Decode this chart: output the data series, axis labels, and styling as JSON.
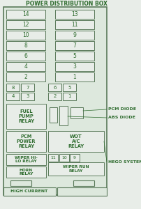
{
  "title": "POWER DISTRIBUTION BOX",
  "bg_outer": "#e8ede8",
  "bg_inner": "#dde8dd",
  "border_color": "#5a7a5a",
  "text_color": "#2d6b2d",
  "box_fc": "#e8ede8",
  "box_ec": "#5a7a5a",
  "main_fuse_rows": [
    [
      "14",
      "13"
    ],
    [
      "12",
      "11"
    ],
    [
      "10",
      "9"
    ],
    [
      "8",
      "7"
    ],
    [
      "6",
      "5"
    ],
    [
      "4",
      "3"
    ],
    [
      "2",
      "1"
    ]
  ],
  "small_fuse_rows": [
    [
      "8",
      "7",
      "6",
      "5"
    ],
    [
      "4",
      "3",
      "2",
      "1"
    ]
  ],
  "relay_fuel_pump": "FUEL\nPUMP\nRELAY",
  "relay_pcm_power": "PCM\nPOWER\nRELAY",
  "relay_wot_ac": "WOT\nA/C\nRELAY",
  "relay_wiper_hilo": "WIPER HI-\nLO RELAY",
  "relay_horn": "HORN\nRELAY",
  "relay_wiper_run": "WIPER RUN\nRELAY",
  "bottom_fuses": [
    "11",
    "10",
    "9"
  ],
  "ann_pcm": "PCM DIODE",
  "ann_abs": "ABS DIODE",
  "ann_hego": "HEGO SYSTEM",
  "bottom_label": "HIGH CURRENT"
}
